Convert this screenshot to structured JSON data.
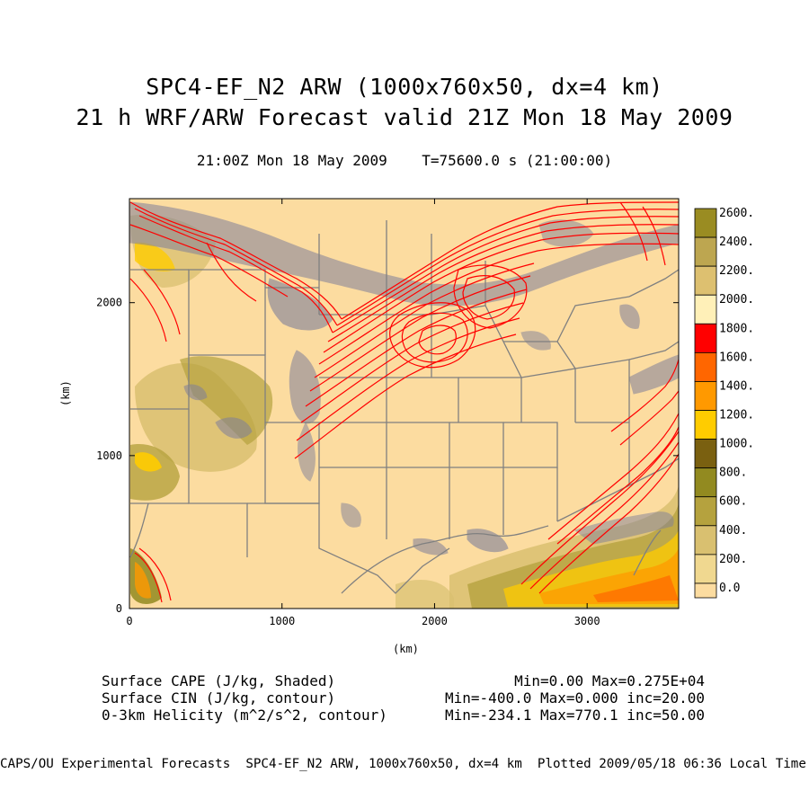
{
  "header": {
    "title_line1": "SPC4-EF_N2 ARW (1000x760x50, dx=4 km)",
    "title_line2": "21 h WRF/ARW Forecast valid 21Z Mon 18 May 2009",
    "subtitle": "21:00Z Mon 18 May 2009    T=75600.0 s (21:00:00)"
  },
  "map": {
    "x_axis_label": "(km)",
    "y_axis_label": "(km)",
    "x_ticks": [
      "0",
      "1000",
      "2000",
      "3000"
    ],
    "y_ticks": [
      "0",
      "1000",
      "2000"
    ],
    "x_tick_values": [
      0,
      1000,
      2000,
      3000
    ],
    "y_tick_values": [
      0,
      1000,
      2000
    ],
    "x_range": [
      0,
      3600
    ],
    "y_range": [
      0,
      2680
    ],
    "colors": {
      "background_cape": "#fcdca0",
      "cin_contour": "#7f7f9a",
      "helicity_contour": "#ff0000",
      "state_borders": "#808080"
    }
  },
  "colorbar": {
    "labels": [
      "2600.",
      "2400.",
      "2200.",
      "2000.",
      "1800.",
      "1600.",
      "1400.",
      "1200.",
      "1000.",
      "800.",
      "600.",
      "400.",
      "200.",
      "0.0"
    ],
    "colors": [
      "#9a8c22",
      "#bda650",
      "#ddc070",
      "#fff0b8",
      "#ff0000",
      "#ff6600",
      "#ff9900",
      "#ffcc00",
      "#7a6010",
      "#928a20",
      "#b5a23e",
      "#d9c070",
      "#f0d890",
      "#fcdca0"
    ]
  },
  "legend": {
    "left": [
      "Surface CAPE (J/kg, Shaded)",
      "Surface CIN (J/kg, contour)",
      "0-3km Helicity (m^2/s^2, contour)"
    ],
    "right": [
      "Min=0.00 Max=0.275E+04",
      "Min=-400.0 Max=0.000 inc=20.00",
      "Min=-234.1 Max=770.1 inc=50.00"
    ]
  },
  "footer": "CAPS/OU Experimental Forecasts  SPC4-EF_N2 ARW, 1000x760x50, dx=4 km  Plotted 2009/05/18 06:36 Local Time"
}
